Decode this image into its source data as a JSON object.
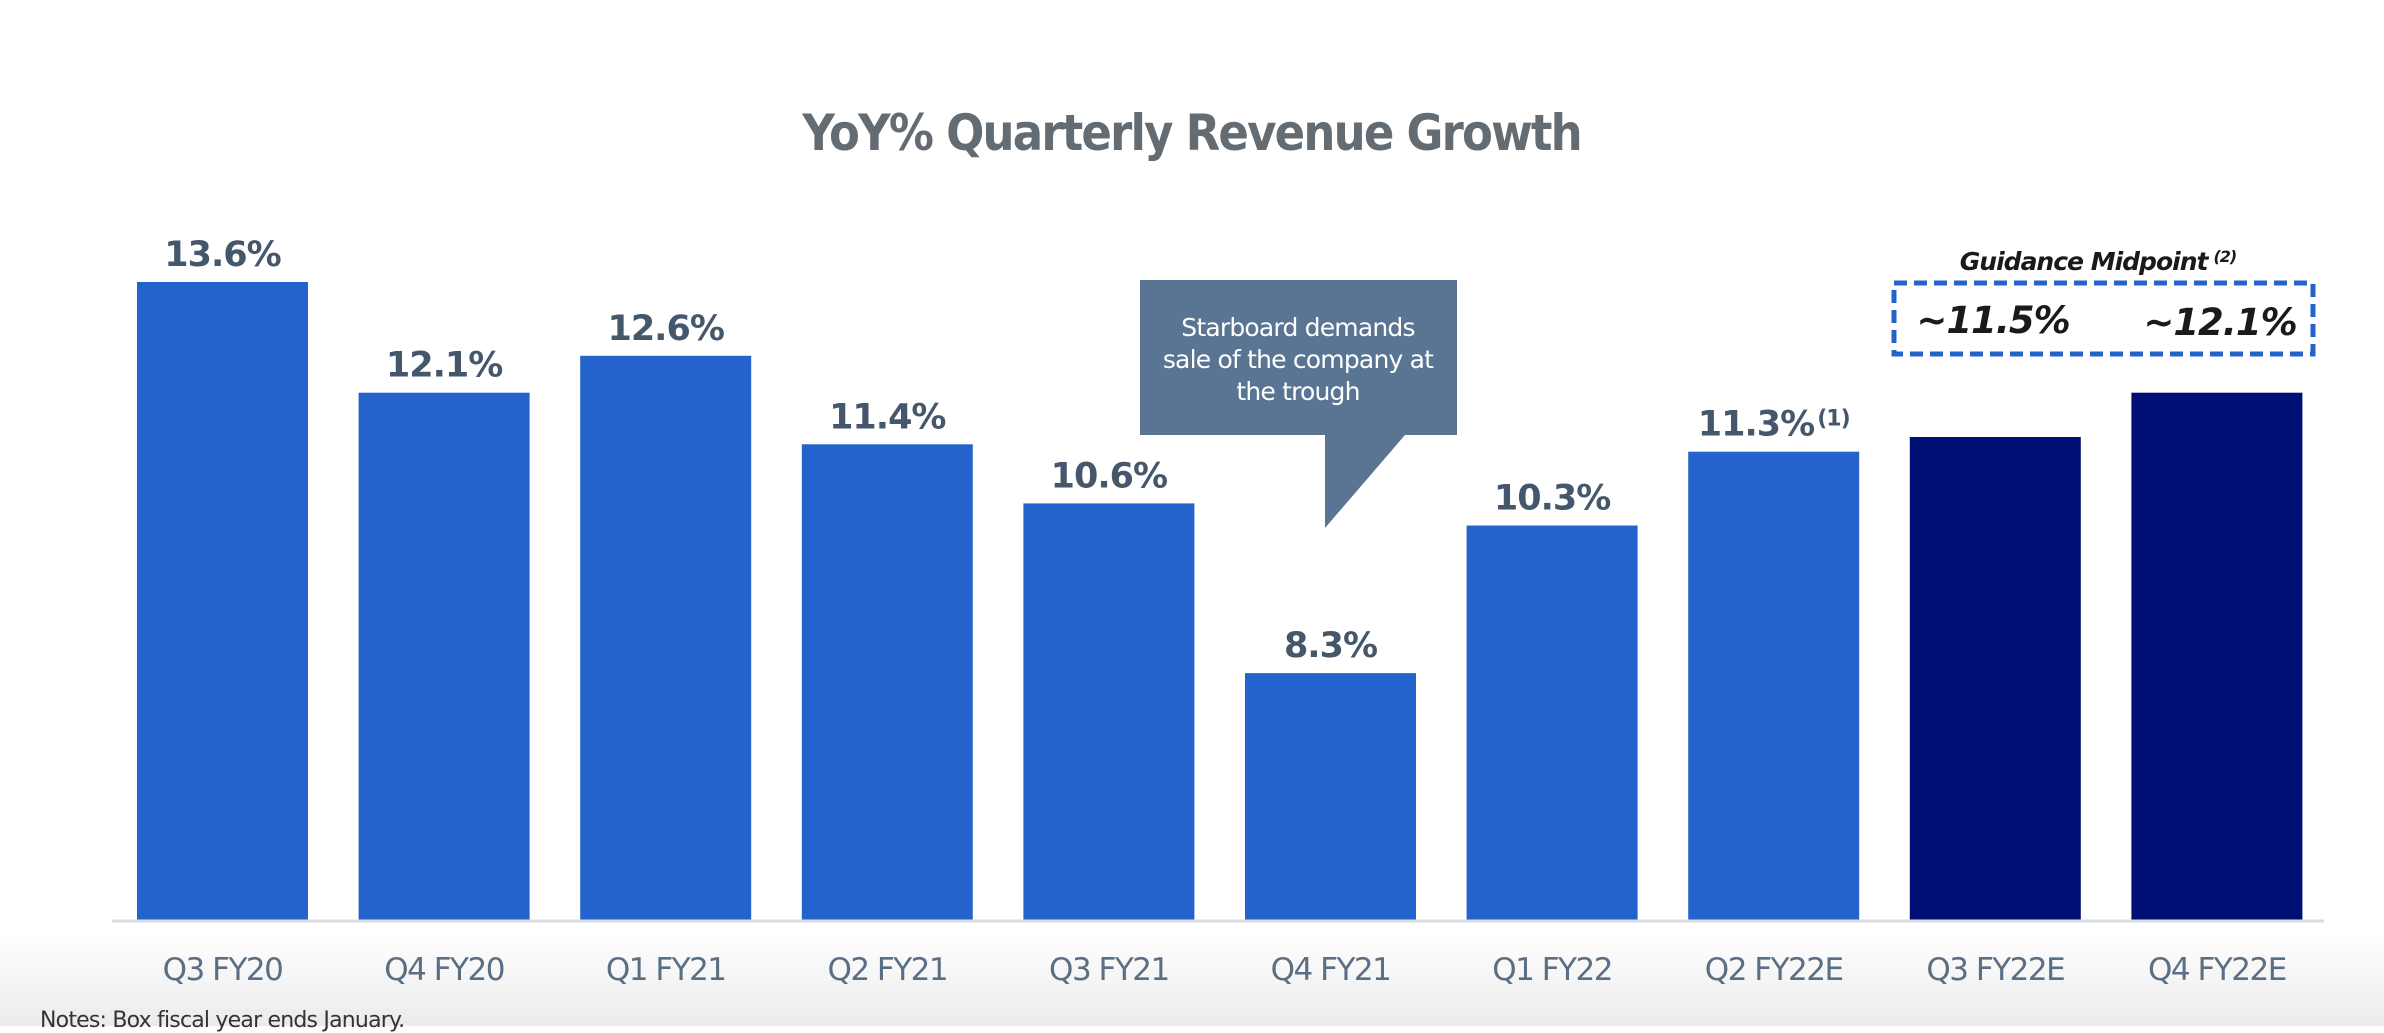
{
  "chart_data": {
    "type": "bar",
    "title": "YoY% Quarterly Revenue Growth",
    "xlabel": "",
    "ylabel": "",
    "ylim": [
      4.94,
      14.5
    ],
    "grid": false,
    "categories": [
      "Q3 FY20",
      "Q4 FY20",
      "Q1 FY21",
      "Q2 FY21",
      "Q3 FY21",
      "Q4 FY21",
      "Q1 FY22",
      "Q2 FY22E",
      "Q3 FY22E",
      "Q4 FY22E"
    ],
    "values": [
      13.6,
      12.1,
      12.6,
      11.4,
      10.6,
      8.3,
      10.3,
      11.3,
      11.5,
      12.1
    ],
    "data_labels": [
      "13.6%",
      "12.1%",
      "12.6%",
      "11.4%",
      "10.6%",
      "8.3%",
      "10.3%",
      "11.3%",
      "",
      ""
    ],
    "data_label_superscripts": [
      "",
      "",
      "",
      "",
      "",
      "",
      "",
      "(1)",
      "",
      ""
    ],
    "bar_kinds": [
      "actual",
      "actual",
      "actual",
      "actual",
      "actual",
      "actual",
      "actual",
      "actual",
      "guidance",
      "guidance"
    ],
    "colors": {
      "actual": "#2563cc",
      "guidance": "#000f73",
      "axis": "#d9dee6",
      "callout": "#5a7593",
      "guidance_box": "#2563cc"
    },
    "annotations": {
      "callout": {
        "lines": [
          "Starboard demands",
          "sale of the company at",
          "the trough"
        ],
        "points_to": "Q4 FY21"
      },
      "guidance": {
        "title": "Guidance Midpoint",
        "superscript": "(2)",
        "values": [
          "~11.5%",
          "~12.1%"
        ],
        "applies_to": [
          "Q3 FY22E",
          "Q4 FY22E"
        ]
      }
    }
  },
  "notes": "Notes: Box fiscal year ends January."
}
